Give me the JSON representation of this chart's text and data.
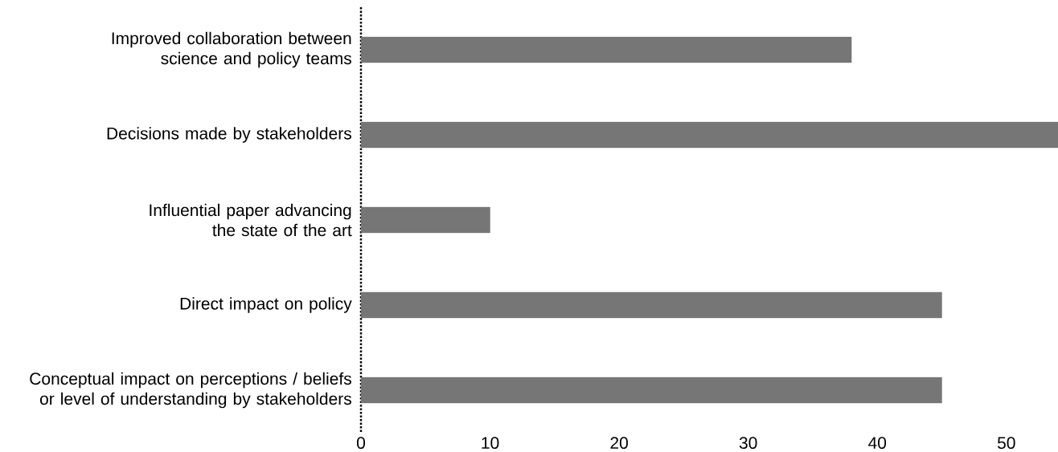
{
  "chart_data": {
    "type": "bar",
    "orientation": "horizontal",
    "categories": [
      "Improved collaboration between science and policy teams",
      "Decisions made by stakeholders",
      "Influential paper advancing the state of the art",
      "Direct impact on policy",
      "Conceptual impact on perceptions / beliefs or level of understanding by stakeholders"
    ],
    "values": [
      38,
      54,
      10,
      45,
      45
    ],
    "color": "#767676",
    "xlim": [
      0,
      54
    ],
    "xticks": [
      0,
      10,
      20,
      30,
      40,
      50
    ]
  }
}
